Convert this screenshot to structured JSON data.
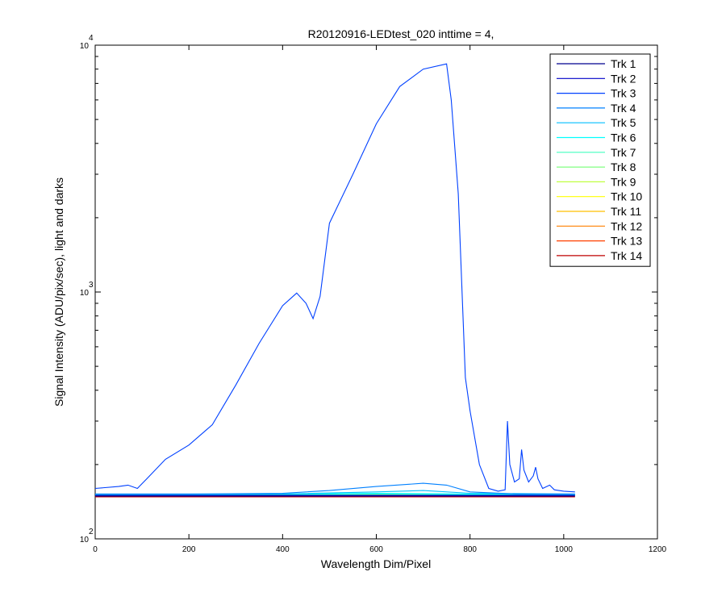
{
  "chart_data": {
    "type": "line",
    "title": "R20120916-LEDtest_020 inttime = 4,",
    "xlabel": "Wavelength Dim/Pixel",
    "ylabel": "Signal Intensity (ADU/pix/sec), light and darks",
    "xlim": [
      0,
      1200
    ],
    "ylim": [
      100,
      10000
    ],
    "yscale": "log",
    "grid": false,
    "legend_position": "top-right",
    "x_ticks": [
      0,
      200,
      400,
      600,
      800,
      1000,
      1200
    ],
    "y_ticks": [
      {
        "value": 100,
        "base": "10",
        "exp": "2"
      },
      {
        "value": 1000,
        "base": "10",
        "exp": "3"
      },
      {
        "value": 10000,
        "base": "10",
        "exp": "4"
      }
    ],
    "series": [
      {
        "name": "Trk 1",
        "color": "#00008f",
        "x": [
          0,
          200,
          400,
          600,
          800,
          1024
        ],
        "y": [
          149,
          149,
          149,
          149,
          149,
          149
        ]
      },
      {
        "name": "Trk 2",
        "color": "#0000c8",
        "x": [
          0,
          200,
          400,
          600,
          800,
          1024
        ],
        "y": [
          150,
          150,
          150,
          150,
          150,
          150
        ]
      },
      {
        "name": "Trk 3",
        "color": "#0040ff",
        "x": [
          0,
          50,
          70,
          90,
          110,
          150,
          200,
          250,
          300,
          350,
          400,
          430,
          450,
          465,
          480,
          500,
          550,
          600,
          650,
          700,
          750,
          760,
          775,
          790,
          800,
          820,
          840,
          860,
          875,
          880,
          885,
          895,
          905,
          910,
          915,
          925,
          935,
          940,
          945,
          955,
          970,
          980,
          1000,
          1024
        ],
        "y": [
          160,
          163,
          165,
          160,
          175,
          210,
          240,
          290,
          420,
          620,
          880,
          990,
          900,
          780,
          960,
          1900,
          3000,
          4800,
          6800,
          8000,
          8400,
          6000,
          2500,
          450,
          330,
          200,
          160,
          156,
          158,
          300,
          200,
          170,
          175,
          230,
          190,
          170,
          180,
          195,
          175,
          160,
          165,
          158,
          156,
          155
        ]
      },
      {
        "name": "Trk 4",
        "color": "#0080ff",
        "x": [
          0,
          200,
          400,
          500,
          600,
          700,
          750,
          800,
          900,
          1024
        ],
        "y": [
          152,
          152,
          153,
          157,
          163,
          168,
          165,
          155,
          152,
          152
        ]
      },
      {
        "name": "Trk 5",
        "color": "#00bfff",
        "x": [
          0,
          200,
          400,
          600,
          700,
          800,
          1024
        ],
        "y": [
          152,
          152,
          152,
          155,
          157,
          153,
          152
        ]
      },
      {
        "name": "Trk 6",
        "color": "#00ffff",
        "x": [
          0,
          200,
          400,
          600,
          800,
          1024
        ],
        "y": [
          151,
          151,
          152,
          153,
          152,
          151
        ]
      },
      {
        "name": "Trk 7",
        "color": "#40ffbf",
        "x": [
          0,
          200,
          400,
          600,
          800,
          1024
        ],
        "y": [
          151,
          151,
          151,
          152,
          151,
          151
        ]
      },
      {
        "name": "Trk 8",
        "color": "#80ff80",
        "x": [
          0,
          200,
          400,
          600,
          800,
          1024
        ],
        "y": [
          151,
          151,
          151,
          151,
          151,
          151
        ]
      },
      {
        "name": "Trk 9",
        "color": "#bfff40",
        "x": [
          0,
          200,
          400,
          600,
          800,
          1024
        ],
        "y": [
          150,
          150,
          150,
          151,
          150,
          150
        ]
      },
      {
        "name": "Trk 10",
        "color": "#ffff00",
        "x": [
          0,
          200,
          400,
          600,
          800,
          1024
        ],
        "y": [
          150,
          150,
          150,
          150,
          150,
          150
        ]
      },
      {
        "name": "Trk 11",
        "color": "#ffbf00",
        "x": [
          0,
          200,
          400,
          600,
          800,
          1024
        ],
        "y": [
          150,
          150,
          150,
          150,
          150,
          150
        ]
      },
      {
        "name": "Trk 12",
        "color": "#ff8000",
        "x": [
          0,
          200,
          400,
          600,
          800,
          1024
        ],
        "y": [
          150,
          150,
          150,
          150,
          150,
          150
        ]
      },
      {
        "name": "Trk 13",
        "color": "#ff4000",
        "x": [
          0,
          200,
          400,
          600,
          800,
          1024
        ],
        "y": [
          149,
          149,
          149,
          149,
          149,
          149
        ]
      },
      {
        "name": "Trk 14",
        "color": "#bf0000",
        "x": [
          0,
          200,
          400,
          600,
          800,
          1024
        ],
        "y": [
          148,
          148,
          148,
          148,
          148,
          148
        ]
      }
    ]
  }
}
